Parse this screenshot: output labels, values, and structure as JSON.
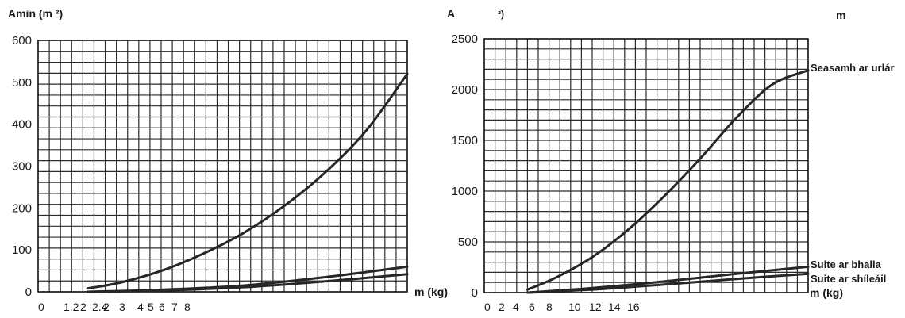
{
  "chart_data": [
    {
      "type": "line",
      "ylabel": "Amin (m ²)",
      "xlabel": "m (kg)",
      "ylim": [
        0,
        600
      ],
      "xlim": [
        0,
        9
      ],
      "y_ticks": [
        "600",
        "500",
        "400",
        "300",
        "200",
        "100",
        "0"
      ],
      "x_tick_labels": [
        "0",
        "1.2",
        "2",
        "2.4",
        "2",
        "3",
        "4",
        "5",
        "6",
        "7",
        "8"
      ],
      "grid": true,
      "series": [
        {
          "values": [
            [
              1.2,
              8
            ],
            [
              2,
              22
            ],
            [
              3,
              50
            ],
            [
              4,
              90
            ],
            [
              5,
              140
            ],
            [
              6,
              205
            ],
            [
              7,
              285
            ],
            [
              8,
              385
            ],
            [
              9,
              520
            ]
          ]
        },
        {
          "values": [
            [
              1.2,
              0
            ],
            [
              3,
              5
            ],
            [
              5,
              15
            ],
            [
              7,
              35
            ],
            [
              9,
              60
            ]
          ]
        },
        {
          "values": [
            [
              1.2,
              0
            ],
            [
              3,
              3
            ],
            [
              5,
              11
            ],
            [
              7,
              25
            ],
            [
              9,
              42
            ]
          ]
        }
      ]
    },
    {
      "type": "line",
      "ylabel": "A",
      "ylabel_fragment": "²)",
      "top_right_label": "m",
      "xlabel": "m (kg)",
      "ylim": [
        0,
        2500
      ],
      "xlim": [
        0,
        18
      ],
      "y_ticks": [
        "2500",
        "2000",
        "1500",
        "1000",
        "500",
        "0"
      ],
      "x_tick_labels": [
        "0",
        "2",
        "4",
        "6",
        "8",
        "10",
        "12",
        "14",
        "16"
      ],
      "grid": true,
      "series": [
        {
          "name": "Seasamh ar urlár",
          "values": [
            [
              2.4,
              30
            ],
            [
              4,
              150
            ],
            [
              6,
              350
            ],
            [
              8,
              620
            ],
            [
              10,
              950
            ],
            [
              12,
              1320
            ],
            [
              14,
              1720
            ],
            [
              16,
              2050
            ],
            [
              18,
              2190
            ]
          ]
        },
        {
          "name": "Suite ar bhalla",
          "values": [
            [
              2.4,
              0
            ],
            [
              6,
              45
            ],
            [
              10,
              110
            ],
            [
              14,
              185
            ],
            [
              18,
              255
            ]
          ]
        },
        {
          "name": "Suite ar shíleáil",
          "values": [
            [
              2.4,
              0
            ],
            [
              6,
              30
            ],
            [
              10,
              80
            ],
            [
              14,
              135
            ],
            [
              18,
              185
            ]
          ]
        }
      ]
    }
  ]
}
